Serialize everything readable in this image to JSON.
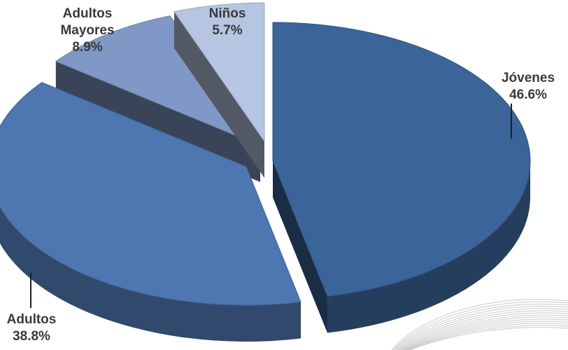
{
  "chart_data": {
    "type": "pie",
    "title": "",
    "style": "3d-exploded",
    "slices": [
      {
        "label_lines": [
          "Jóvenes"
        ],
        "value_text": "46.6%",
        "value": 46.6,
        "color": "#3b6498"
      },
      {
        "label_lines": [
          "Adultos"
        ],
        "value_text": "38.8%",
        "value": 38.8,
        "color": "#4e76b0"
      },
      {
        "label_lines": [
          "Adultos",
          "Mayores"
        ],
        "value_text": "8.9%",
        "value": 8.9,
        "color": "#7f98c6"
      },
      {
        "label_lines": [
          "Niños"
        ],
        "value_text": "5.7%",
        "value": 5.7,
        "color": "#b6c5e1"
      }
    ]
  }
}
